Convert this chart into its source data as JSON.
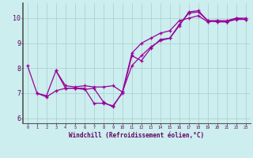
{
  "xlabel": "Windchill (Refroidissement éolien,°C)",
  "ylabel": "",
  "bg_color": "#cceeee",
  "line_color": "#990099",
  "spine_color": "#555555",
  "xlim": [
    -0.5,
    23.5
  ],
  "ylim": [
    5.8,
    10.6
  ],
  "yticks": [
    6,
    7,
    8,
    9,
    10
  ],
  "xticks": [
    0,
    1,
    2,
    3,
    4,
    5,
    6,
    7,
    8,
    9,
    10,
    11,
    12,
    13,
    14,
    15,
    16,
    17,
    18,
    19,
    20,
    21,
    22,
    23
  ],
  "lines": [
    {
      "x": [
        0,
        1,
        2,
        3,
        4,
        5,
        6,
        7,
        8,
        9,
        10,
        11,
        12,
        13,
        14,
        15,
        16,
        17,
        18,
        19,
        20,
        21,
        22,
        23
      ],
      "y": [
        8.1,
        7.0,
        6.9,
        7.9,
        7.2,
        7.2,
        7.2,
        6.6,
        6.6,
        6.5,
        7.0,
        8.5,
        8.3,
        8.8,
        9.15,
        9.2,
        9.75,
        10.2,
        10.25,
        9.9,
        9.85,
        9.85,
        10.0,
        9.95
      ]
    },
    {
      "x": [
        1,
        2,
        3,
        4,
        5,
        6,
        7,
        8,
        9,
        10,
        11,
        12,
        13,
        14,
        15,
        16,
        17,
        18,
        19,
        20,
        21,
        22,
        23
      ],
      "y": [
        7.0,
        6.85,
        7.1,
        7.2,
        7.2,
        7.15,
        7.2,
        6.65,
        6.45,
        7.05,
        8.1,
        8.5,
        8.85,
        9.1,
        9.2,
        9.7,
        10.25,
        10.3,
        9.9,
        9.9,
        9.9,
        10.0,
        10.0
      ]
    },
    {
      "x": [
        3,
        4,
        5,
        6,
        7,
        8,
        9,
        10,
        11,
        12,
        13,
        14,
        15,
        16,
        17,
        18,
        19,
        20,
        21,
        22,
        23
      ],
      "y": [
        7.9,
        7.3,
        7.25,
        7.3,
        7.25,
        7.25,
        7.3,
        7.05,
        8.6,
        9.0,
        9.2,
        9.4,
        9.5,
        9.9,
        10.0,
        10.1,
        9.85,
        9.9,
        9.85,
        9.95,
        9.95
      ]
    }
  ],
  "grid_color": "#aacccc",
  "xlabel_color": "#660066",
  "xlabel_fontsize": 5.5,
  "ytick_fontsize": 6.0,
  "xtick_fontsize": 3.8
}
